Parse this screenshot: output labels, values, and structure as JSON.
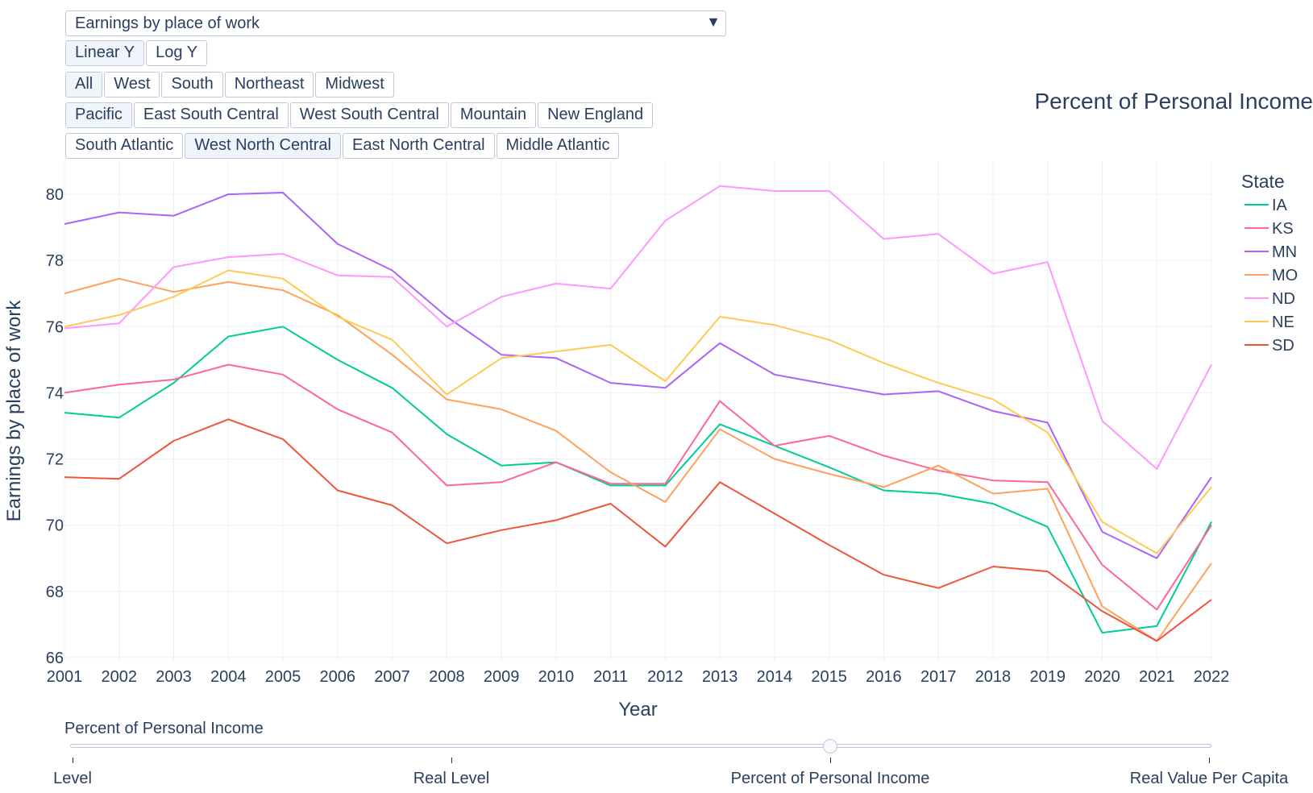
{
  "controls": {
    "dropdown": {
      "selected": "Earnings by place of work"
    },
    "scale_buttons": [
      "Linear Y",
      "Log Y"
    ],
    "scale_active": 0,
    "region_buttons": [
      "All",
      "West",
      "South",
      "Northeast",
      "Midwest"
    ],
    "region_active": 0,
    "division_row1": [
      "Pacific",
      "East South Central",
      "West South Central",
      "Mountain",
      "New England"
    ],
    "division_row1_active": 0,
    "division_row2": [
      "South Atlantic",
      "West North Central",
      "East North Central",
      "Middle Atlantic"
    ],
    "division_row2_active": 1
  },
  "slider": {
    "label": "Percent of Personal Income",
    "steps": [
      "Level",
      "Real Level",
      "Percent of Personal Income",
      "Real Value Per Capita"
    ],
    "active": 2
  },
  "chart_data": {
    "type": "line",
    "title": "Percent of Personal Income",
    "xlabel": "Year",
    "ylabel": "Earnings by place of work",
    "legend_title": "State",
    "legend_position": "top-right",
    "grid": true,
    "xlim": [
      2001,
      2022
    ],
    "ylim": [
      65.9,
      81
    ],
    "yticks": [
      66,
      68,
      70,
      72,
      74,
      76,
      78,
      80
    ],
    "x": [
      2001,
      2002,
      2003,
      2004,
      2005,
      2006,
      2007,
      2008,
      2009,
      2010,
      2011,
      2012,
      2013,
      2014,
      2015,
      2016,
      2017,
      2018,
      2019,
      2020,
      2021,
      2022
    ],
    "series": [
      {
        "name": "IA",
        "color": "#00cc96",
        "values": [
          73.4,
          73.25,
          74.3,
          75.7,
          76.0,
          75.0,
          74.15,
          72.75,
          71.8,
          71.9,
          71.2,
          71.2,
          73.05,
          72.4,
          71.75,
          71.05,
          70.95,
          70.65,
          69.95,
          66.75,
          66.95,
          70.1
        ]
      },
      {
        "name": "KS",
        "color": "#ff6692",
        "values": [
          74.0,
          74.25,
          74.4,
          74.85,
          74.55,
          73.5,
          72.8,
          71.2,
          71.3,
          71.9,
          71.25,
          71.25,
          73.75,
          72.4,
          72.7,
          72.1,
          71.65,
          71.35,
          71.3,
          68.8,
          67.45,
          70.0
        ]
      },
      {
        "name": "MN",
        "color": "#ab63fa",
        "values": [
          79.1,
          79.45,
          79.35,
          80.0,
          80.05,
          78.5,
          77.7,
          76.3,
          75.15,
          75.05,
          74.3,
          74.15,
          75.5,
          74.55,
          74.25,
          73.95,
          74.05,
          73.45,
          73.1,
          69.8,
          69.0,
          71.45
        ]
      },
      {
        "name": "MO",
        "color": "#ffa15a",
        "values": [
          77.0,
          77.45,
          77.05,
          77.35,
          77.1,
          76.35,
          75.15,
          73.8,
          73.5,
          72.85,
          71.6,
          70.7,
          72.9,
          72.0,
          71.55,
          71.15,
          71.8,
          70.95,
          71.1,
          67.55,
          66.5,
          68.85
        ]
      },
      {
        "name": "ND",
        "color": "#ff97ff",
        "values": [
          75.95,
          76.1,
          77.8,
          78.1,
          78.2,
          77.55,
          77.5,
          76.0,
          76.9,
          77.3,
          77.15,
          79.2,
          80.25,
          80.1,
          80.1,
          78.65,
          78.8,
          77.6,
          77.95,
          73.15,
          71.7,
          74.85
        ]
      },
      {
        "name": "NE",
        "color": "#fecb52",
        "values": [
          76.0,
          76.35,
          76.9,
          77.7,
          77.45,
          76.3,
          75.6,
          73.95,
          75.05,
          75.25,
          75.45,
          74.35,
          76.3,
          76.05,
          75.6,
          74.9,
          74.3,
          73.8,
          72.8,
          70.1,
          69.15,
          71.15
        ]
      },
      {
        "name": "SD",
        "color": "#ef553b",
        "values": [
          71.45,
          71.4,
          72.55,
          73.2,
          72.6,
          71.05,
          70.6,
          69.45,
          69.85,
          70.15,
          70.65,
          69.35,
          71.3,
          70.35,
          69.4,
          68.5,
          68.1,
          68.75,
          68.6,
          67.4,
          66.5,
          67.75
        ]
      }
    ]
  }
}
